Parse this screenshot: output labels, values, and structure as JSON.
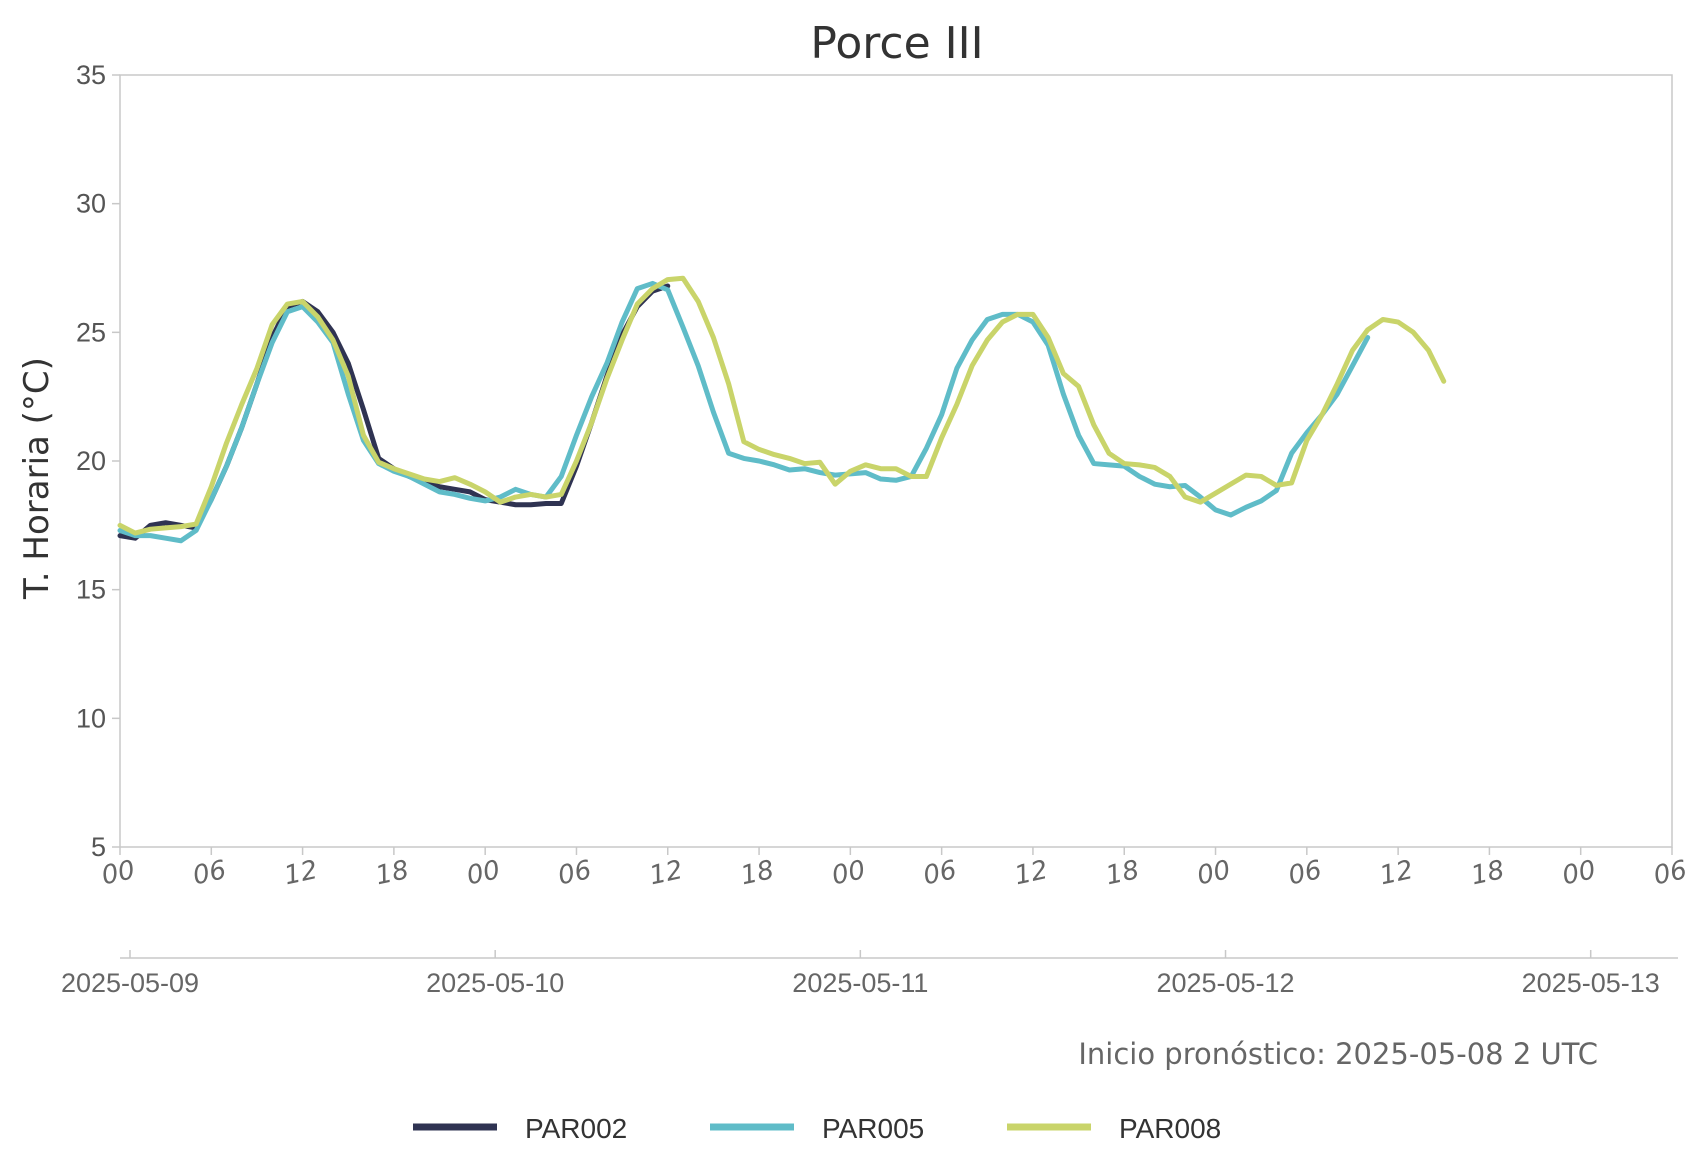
{
  "chart_data": {
    "type": "line",
    "title": "Porce III",
    "xlabel": "",
    "ylabel": "T. Horaria (°C)",
    "ylim": [
      5,
      35
    ],
    "yticks": [
      "5",
      "10",
      "15",
      "20",
      "25",
      "30",
      "35"
    ],
    "xlim_hours": [
      0,
      102
    ],
    "xtick_labels": [
      "00",
      "06",
      "12",
      "18",
      "00",
      "06",
      "12",
      "18",
      "00",
      "06",
      "12",
      "18",
      "00",
      "06",
      "12",
      "18",
      "00",
      "06"
    ],
    "date_labels": [
      "2025-05-09",
      "2025-05-10",
      "2025-05-11",
      "2025-05-12",
      "2025-05-13"
    ],
    "annotation": "Inicio pronóstico: 2025-05-08 2 UTC",
    "grid": false,
    "legend_position": "bottom",
    "series": [
      {
        "name": "PAR002",
        "color": "#2f3352",
        "x_start": "2025-05-09 00:00",
        "step_hours": 1,
        "values": [
          17.1,
          17.0,
          17.5,
          17.6,
          17.5,
          17.4,
          18.5,
          19.8,
          21.3,
          23.0,
          24.8,
          26.0,
          26.2,
          25.8,
          25.0,
          23.8,
          22.0,
          20.1,
          19.7,
          19.4,
          19.2,
          19.0,
          18.9,
          18.8,
          18.5,
          18.4,
          18.3,
          18.3,
          18.35,
          18.35,
          19.8,
          21.5,
          23.3,
          24.9,
          26.0,
          26.6,
          26.8
        ]
      },
      {
        "name": "PAR005",
        "color": "#5fbcc8",
        "x_start": "2025-05-09 00:00",
        "step_hours": 1,
        "values": [
          17.3,
          17.1,
          17.1,
          17.0,
          16.9,
          17.3,
          18.5,
          19.8,
          21.3,
          23.0,
          24.6,
          25.8,
          26.0,
          25.4,
          24.6,
          22.6,
          20.8,
          19.9,
          19.6,
          19.4,
          19.1,
          18.8,
          18.7,
          18.55,
          18.45,
          18.6,
          18.9,
          18.7,
          18.6,
          19.4,
          21.0,
          22.5,
          23.8,
          25.4,
          26.7,
          26.9,
          26.65,
          25.2,
          23.7,
          21.9,
          20.3,
          20.1,
          20.0,
          19.85,
          19.65,
          19.7,
          19.55,
          19.45,
          19.5,
          19.55,
          19.3,
          19.25,
          19.4,
          20.5,
          21.8,
          23.6,
          24.7,
          25.5,
          25.7,
          25.7,
          25.4,
          24.5,
          22.6,
          21.0,
          19.9,
          19.85,
          19.8,
          19.4,
          19.1,
          19.0,
          19.05,
          18.6,
          18.1,
          17.9,
          18.2,
          18.45,
          18.85,
          20.3,
          21.1,
          21.8,
          22.6,
          23.7,
          24.8
        ]
      },
      {
        "name": "PAR008",
        "color": "#c9d46a",
        "x_start": "2025-05-09 00:00",
        "step_hours": 1,
        "values": [
          17.5,
          17.2,
          17.35,
          17.4,
          17.45,
          17.55,
          19.0,
          20.7,
          22.2,
          23.6,
          25.3,
          26.1,
          26.2,
          25.6,
          24.7,
          23.3,
          21.0,
          19.95,
          19.7,
          19.5,
          19.3,
          19.2,
          19.35,
          19.1,
          18.8,
          18.4,
          18.6,
          18.7,
          18.6,
          18.7,
          20.0,
          21.5,
          23.2,
          24.7,
          26.1,
          26.7,
          27.05,
          27.1,
          26.2,
          24.8,
          23.0,
          20.75,
          20.45,
          20.25,
          20.1,
          19.9,
          19.95,
          19.1,
          19.6,
          19.85,
          19.7,
          19.7,
          19.4,
          19.4,
          20.9,
          22.2,
          23.7,
          24.7,
          25.4,
          25.7,
          25.7,
          24.8,
          23.4,
          22.9,
          21.4,
          20.3,
          19.9,
          19.85,
          19.75,
          19.4,
          18.6,
          18.4,
          18.75,
          19.1,
          19.45,
          19.4,
          19.05,
          19.15,
          20.8,
          21.8,
          23.0,
          24.3,
          25.1,
          25.5,
          25.4,
          25.0,
          24.3,
          23.1
        ]
      }
    ]
  }
}
